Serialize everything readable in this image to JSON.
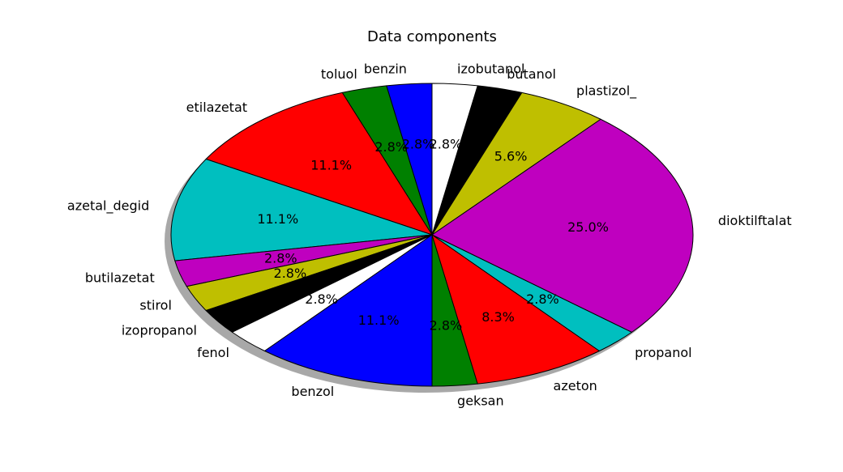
{
  "chart_data": {
    "type": "pie",
    "title": "Data components",
    "start_angle_deg": 90,
    "direction": "counterclockwise",
    "shadow": true,
    "slices": [
      {
        "label": "benzin",
        "value": 2.8,
        "pct_label": "2.8%",
        "color": "#0000ff"
      },
      {
        "label": "toluol",
        "value": 2.8,
        "pct_label": "2.8%",
        "color": "#008000"
      },
      {
        "label": "etilazetat",
        "value": 11.1,
        "pct_label": "11.1%",
        "color": "#ff0000"
      },
      {
        "label": "azetal_degid",
        "value": 11.1,
        "pct_label": "11.1%",
        "color": "#00bfbf"
      },
      {
        "label": "butilazetat",
        "value": 2.8,
        "pct_label": "2.8%",
        "color": "#bf00bf"
      },
      {
        "label": "stirol",
        "value": 2.8,
        "pct_label": "2.8%",
        "color": "#bfbf00"
      },
      {
        "label": "izopropanol",
        "value": 2.8,
        "pct_label": "",
        "color": "#000000"
      },
      {
        "label": "fenol",
        "value": 2.8,
        "pct_label": "2.8%",
        "color": "#ffffff"
      },
      {
        "label": "benzol",
        "value": 11.1,
        "pct_label": "11.1%",
        "color": "#0000ff"
      },
      {
        "label": "geksan",
        "value": 2.8,
        "pct_label": "2.8%",
        "color": "#008000"
      },
      {
        "label": "azeton",
        "value": 8.3,
        "pct_label": "8.3%",
        "color": "#ff0000"
      },
      {
        "label": "propanol",
        "value": 2.8,
        "pct_label": "2.8%",
        "color": "#00bfbf"
      },
      {
        "label": "dioktilftalat",
        "value": 25.0,
        "pct_label": "25.0%",
        "color": "#bf00bf"
      },
      {
        "label": "plastizol_",
        "value": 5.6,
        "pct_label": "5.6%",
        "color": "#bfbf00"
      },
      {
        "label": "butanol",
        "value": 2.8,
        "pct_label": "",
        "color": "#000000"
      },
      {
        "label": "izobutanol",
        "value": 2.8,
        "pct_label": "2.8%",
        "color": "#ffffff"
      }
    ]
  }
}
